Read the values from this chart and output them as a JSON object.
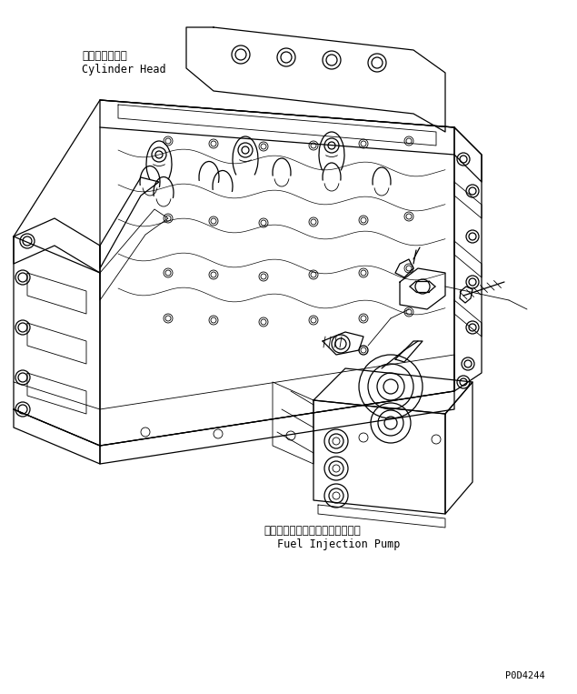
{
  "background_color": "#ffffff",
  "line_color": "#000000",
  "text_color": "#000000",
  "label_cylinder_jp": "シリンダヘッド",
  "label_cylinder_en": "Cylinder Head",
  "label_pump_jp": "フェエルインジェクションポンプ",
  "label_pump_en": "Fuel Injection Pump",
  "part_number": "P0D4244",
  "font_size_jp": 8.5,
  "font_size_en": 8.5,
  "font_size_partno": 7.5,
  "figsize": [
    6.35,
    7.63
  ],
  "dpi": 100,
  "lw_main": 0.9,
  "lw_thin": 0.6
}
